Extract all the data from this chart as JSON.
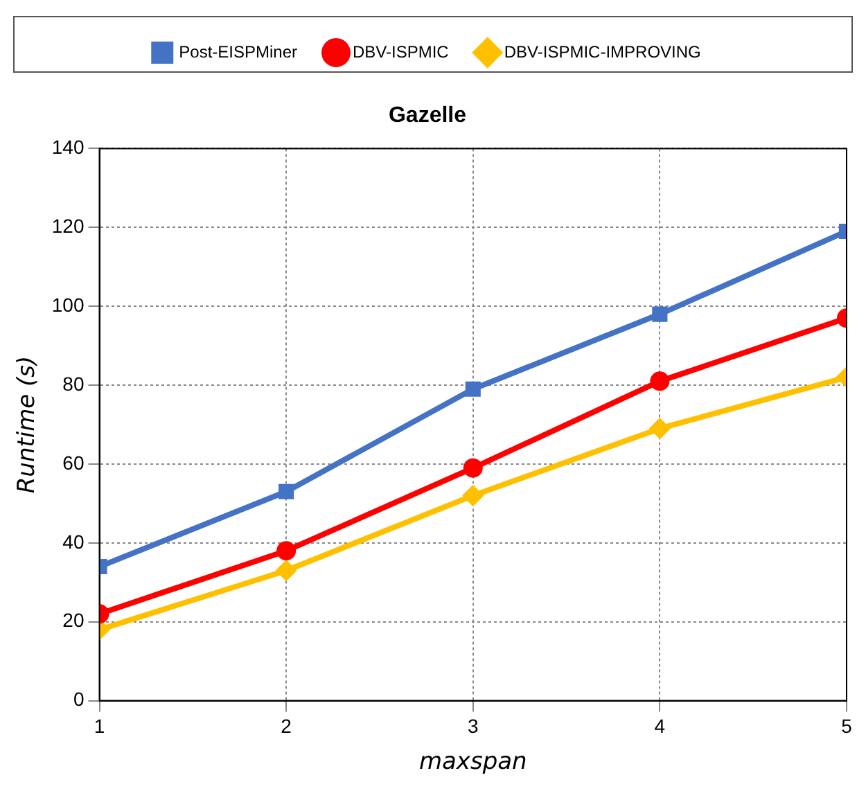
{
  "chart_data": {
    "type": "line",
    "title": "Gazelle",
    "xlabel": "maxspan",
    "ylabel": "Runtime (s)",
    "x": [
      1,
      2,
      3,
      4,
      5
    ],
    "xlim": [
      1,
      5
    ],
    "xticks": [
      1,
      2,
      3,
      4,
      5
    ],
    "ylim": [
      0,
      140
    ],
    "yticks": [
      0,
      20,
      40,
      60,
      80,
      100,
      120,
      140
    ],
    "grid": true,
    "legend": "top",
    "line_style": "solid",
    "series": [
      {
        "name": "Post-EISPMiner",
        "color": "#4472c4",
        "marker": "square",
        "values": [
          34,
          53,
          79,
          98,
          119
        ]
      },
      {
        "name": "DBV-ISPMIC",
        "color": "#ff0000",
        "marker": "circle",
        "values": [
          22,
          38,
          59,
          81,
          97
        ]
      },
      {
        "name": "DBV-ISPMIC-IMPROVING",
        "color": "#ffc000",
        "marker": "diamond",
        "values": [
          18,
          33,
          52,
          69,
          82
        ]
      }
    ]
  }
}
